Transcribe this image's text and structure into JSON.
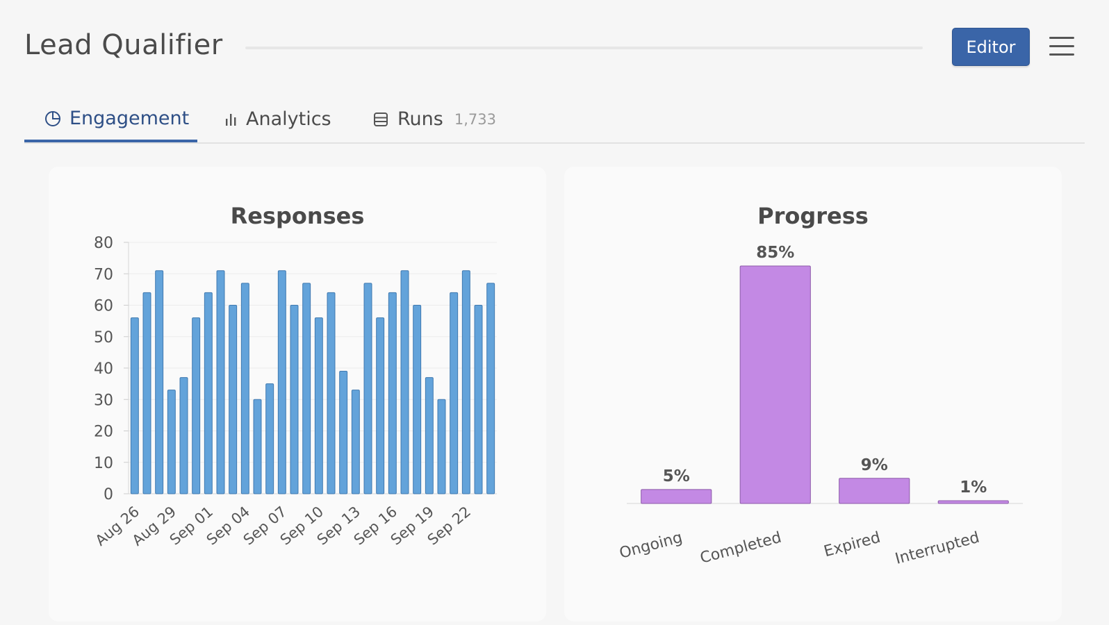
{
  "app": {
    "title": "Lead Qualifier",
    "editor_label": "Editor"
  },
  "icons": {
    "menu": "hamburger-icon",
    "engagement": "pie-chart-icon",
    "analytics": "bar-chart-icon",
    "runs": "list-icon"
  },
  "tabs": [
    {
      "label": "Engagement",
      "active": true
    },
    {
      "label": "Analytics",
      "active": false
    },
    {
      "label": "Runs",
      "count": "1,733",
      "active": false
    }
  ],
  "colors": {
    "accent": "#3a65a8",
    "responses_bar": "#63a3da",
    "progress_bar": "#c389e4"
  },
  "chart_data": [
    {
      "type": "bar",
      "title": "Responses",
      "x": [
        "Aug 26",
        "Aug 27",
        "Aug 28",
        "Aug 29",
        "Aug 30",
        "Aug 31",
        "Sep 01",
        "Sep 02",
        "Sep 03",
        "Sep 04",
        "Sep 05",
        "Sep 06",
        "Sep 07",
        "Sep 08",
        "Sep 09",
        "Sep 10",
        "Sep 11",
        "Sep 12",
        "Sep 13",
        "Sep 14",
        "Sep 15",
        "Sep 16",
        "Sep 17",
        "Sep 18",
        "Sep 19",
        "Sep 20",
        "Sep 21",
        "Sep 22",
        "Sep 23",
        "Sep 24"
      ],
      "values": [
        56,
        64,
        71,
        33,
        37,
        56,
        64,
        71,
        60,
        67,
        30,
        35,
        71,
        60,
        67,
        56,
        64,
        39,
        33,
        67,
        56,
        64,
        71,
        60,
        37,
        30,
        64,
        71,
        60,
        67
      ],
      "xtick_labels": [
        "Aug 26",
        "Aug 29",
        "Sep 01",
        "Sep 04",
        "Sep 07",
        "Sep 10",
        "Sep 13",
        "Sep 16",
        "Sep 19",
        "Sep 22"
      ],
      "ylim": [
        0,
        80
      ],
      "yticks": [
        0,
        10,
        20,
        30,
        40,
        50,
        60,
        70,
        80
      ],
      "grid": true
    },
    {
      "type": "bar",
      "title": "Progress",
      "categories": [
        "Ongoing",
        "Completed",
        "Expired",
        "Interrupted"
      ],
      "values": [
        5,
        85,
        9,
        1
      ],
      "value_labels": [
        "5%",
        "85%",
        "9%",
        "1%"
      ],
      "grid": false
    }
  ]
}
